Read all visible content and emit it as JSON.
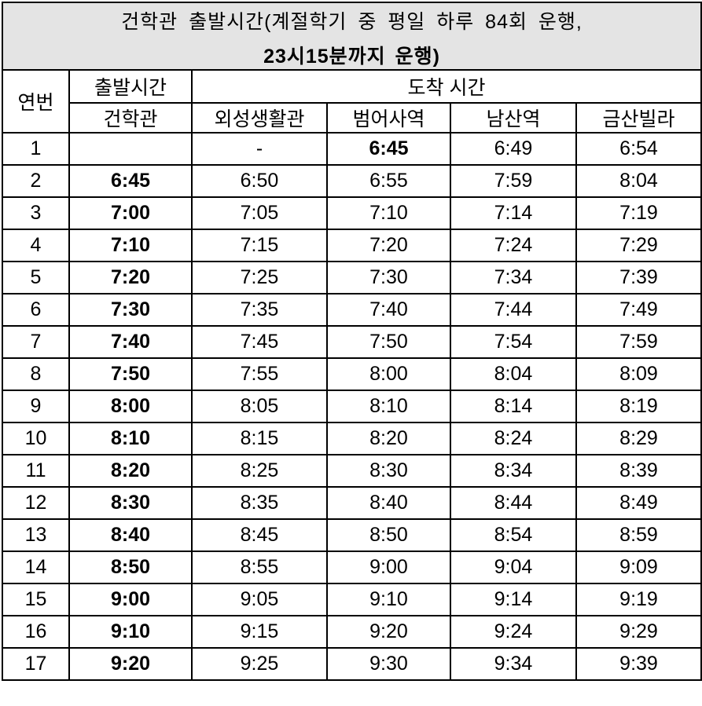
{
  "title": {
    "line1": "건학관 출발시간(계절학기 중 평일 하루 84회 운행,",
    "line2": "23시15분까지 운행)"
  },
  "header": {
    "no": "연번",
    "departure": "출발시간",
    "departure_station": "건학관",
    "arrival": "도착 시간",
    "arrival_stations": [
      "외성생활관",
      "범어사역",
      "남산역",
      "금산빌라"
    ]
  },
  "colors": {
    "title_bg": "#e4e4e4",
    "border": "#000000",
    "text": "#000000"
  },
  "rows": [
    {
      "no": "1",
      "depart": "",
      "arrivals": [
        "-",
        "6:45",
        "6:49",
        "6:54"
      ],
      "bold_arrivals": [
        1
      ]
    },
    {
      "no": "2",
      "depart": "6:45",
      "arrivals": [
        "6:50",
        "6:55",
        "7:59",
        "8:04"
      ],
      "bold_arrivals": []
    },
    {
      "no": "3",
      "depart": "7:00",
      "arrivals": [
        "7:05",
        "7:10",
        "7:14",
        "7:19"
      ],
      "bold_arrivals": []
    },
    {
      "no": "4",
      "depart": "7:10",
      "arrivals": [
        "7:15",
        "7:20",
        "7:24",
        "7:29"
      ],
      "bold_arrivals": []
    },
    {
      "no": "5",
      "depart": "7:20",
      "arrivals": [
        "7:25",
        "7:30",
        "7:34",
        "7:39"
      ],
      "bold_arrivals": []
    },
    {
      "no": "6",
      "depart": "7:30",
      "arrivals": [
        "7:35",
        "7:40",
        "7:44",
        "7:49"
      ],
      "bold_arrivals": []
    },
    {
      "no": "7",
      "depart": "7:40",
      "arrivals": [
        "7:45",
        "7:50",
        "7:54",
        "7:59"
      ],
      "bold_arrivals": []
    },
    {
      "no": "8",
      "depart": "7:50",
      "arrivals": [
        "7:55",
        "8:00",
        "8:04",
        "8:09"
      ],
      "bold_arrivals": []
    },
    {
      "no": "9",
      "depart": "8:00",
      "arrivals": [
        "8:05",
        "8:10",
        "8:14",
        "8:19"
      ],
      "bold_arrivals": []
    },
    {
      "no": "10",
      "depart": "8:10",
      "arrivals": [
        "8:15",
        "8:20",
        "8:24",
        "8:29"
      ],
      "bold_arrivals": []
    },
    {
      "no": "11",
      "depart": "8:20",
      "arrivals": [
        "8:25",
        "8:30",
        "8:34",
        "8:39"
      ],
      "bold_arrivals": []
    },
    {
      "no": "12",
      "depart": "8:30",
      "arrivals": [
        "8:35",
        "8:40",
        "8:44",
        "8:49"
      ],
      "bold_arrivals": []
    },
    {
      "no": "13",
      "depart": "8:40",
      "arrivals": [
        "8:45",
        "8:50",
        "8:54",
        "8:59"
      ],
      "bold_arrivals": []
    },
    {
      "no": "14",
      "depart": "8:50",
      "arrivals": [
        "8:55",
        "9:00",
        "9:04",
        "9:09"
      ],
      "bold_arrivals": []
    },
    {
      "no": "15",
      "depart": "9:00",
      "arrivals": [
        "9:05",
        "9:10",
        "9:14",
        "9:19"
      ],
      "bold_arrivals": []
    },
    {
      "no": "16",
      "depart": "9:10",
      "arrivals": [
        "9:15",
        "9:20",
        "9:24",
        "9:29"
      ],
      "bold_arrivals": []
    },
    {
      "no": "17",
      "depart": "9:20",
      "arrivals": [
        "9:25",
        "9:30",
        "9:34",
        "9:39"
      ],
      "bold_arrivals": []
    }
  ]
}
